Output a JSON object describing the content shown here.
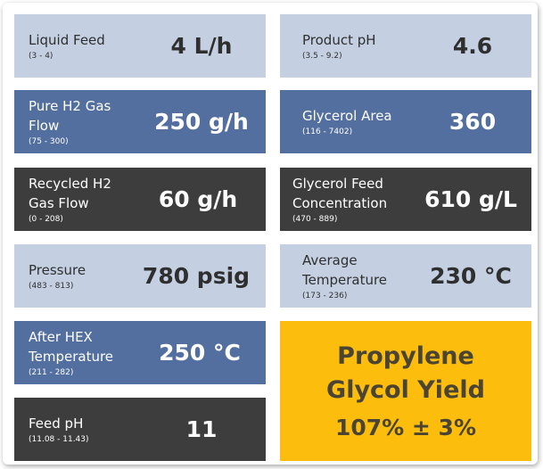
{
  "tiles": {
    "liquid_feed": {
      "name": "Liquid Feed",
      "range": "(3 - 4)",
      "value": "4 L/h"
    },
    "pure_h2": {
      "name": "Pure H2 Gas Flow",
      "range": "(75 - 300)",
      "value": "250 g/h"
    },
    "recycled_h2": {
      "name": "Recycled H2 Gas Flow",
      "range": "(0 - 208)",
      "value": "60 g/h"
    },
    "pressure": {
      "name": "Pressure",
      "range": "(483 - 813)",
      "value": "780 psig"
    },
    "after_hex": {
      "name": "After HEX Temperature",
      "range": "(211 - 282)",
      "value": "250 °C"
    },
    "feed_ph": {
      "name": "Feed pH",
      "range": "(11.08 - 11.43)",
      "value": "11"
    },
    "product_ph": {
      "name": "Product pH",
      "range": "(3.5 - 9.2)",
      "value": "4.6"
    },
    "glycerol_area": {
      "name": "Glycerol Area",
      "range": "(116 - 7402)",
      "value": "360"
    },
    "glycerol_feed": {
      "name": "Glycerol Feed Concentration",
      "range": "(470 - 889)",
      "value": "610 g/L"
    },
    "avg_temp": {
      "name": "Average Temperature",
      "range": "(173 - 236)",
      "value": "230 °C"
    }
  },
  "result": {
    "title": "Propylene Glycol Yield",
    "value": "107% ± 3%"
  },
  "colors": {
    "light_tile": "#c4d0e2",
    "blue_tile": "#536f9f",
    "dark_tile": "#3d3d3d",
    "result_tile": "#fdbd0c"
  }
}
